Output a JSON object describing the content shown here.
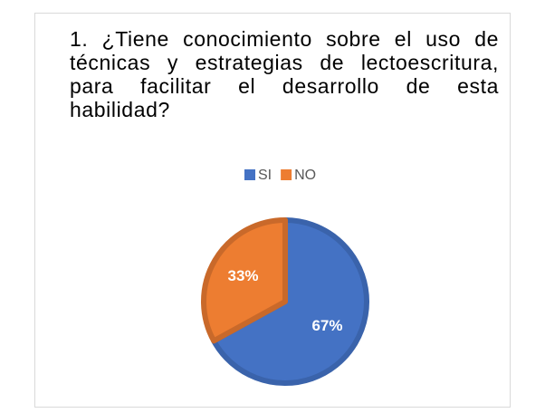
{
  "chart_data": {
    "type": "pie",
    "title": "1. ¿Tiene conocimiento sobre el uso de técnicas y estrategias de lectoescritura, para facilitar el desarrollo de esta habilidad?",
    "categories": [
      "SI",
      "NO"
    ],
    "values": [
      67,
      33
    ],
    "value_labels": [
      "67%",
      "33%"
    ],
    "colors": [
      "#4472c4",
      "#ed7d31"
    ],
    "edge_colors": [
      "#3a63ab",
      "#c9692a"
    ],
    "legend": "top"
  }
}
